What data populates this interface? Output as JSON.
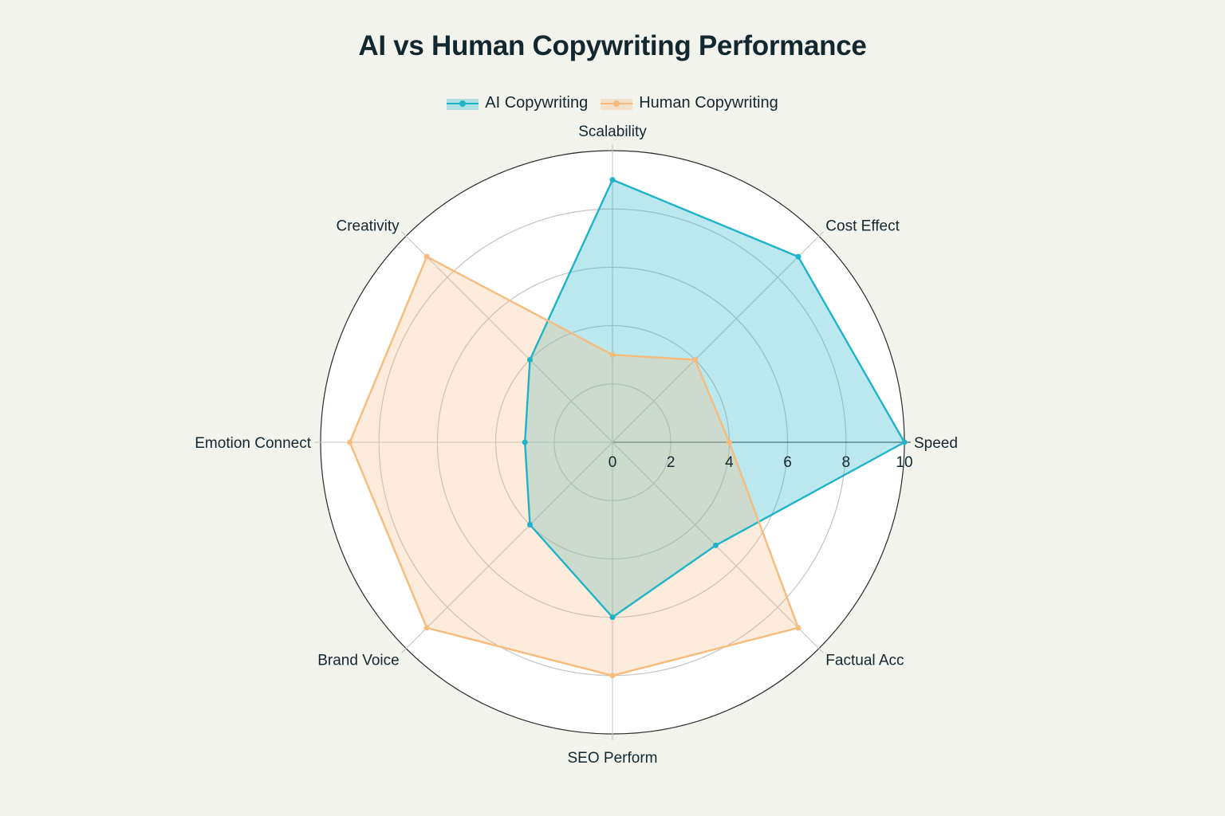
{
  "chart_data": {
    "type": "radar",
    "title": "AI vs Human Copywriting Performance",
    "categories": [
      "Speed",
      "Cost Effect",
      "Scalability",
      "Creativity",
      "Emotion Connect",
      "Brand Voice",
      "SEO Perform",
      "Factual Acc"
    ],
    "series": [
      {
        "name": "AI Copywriting",
        "color": "#1fb3c8",
        "values": [
          10,
          9,
          9,
          4,
          3,
          4,
          6,
          5
        ]
      },
      {
        "name": "Human Copywriting",
        "color": "#f7bb7c",
        "values": [
          4,
          4,
          3,
          9,
          9,
          9,
          8,
          9
        ]
      }
    ],
    "radial_range": [
      0,
      10
    ],
    "radial_ticks": [
      "0",
      "2",
      "4",
      "6",
      "8",
      "10"
    ],
    "legend_position": "top-center",
    "grid": true
  }
}
